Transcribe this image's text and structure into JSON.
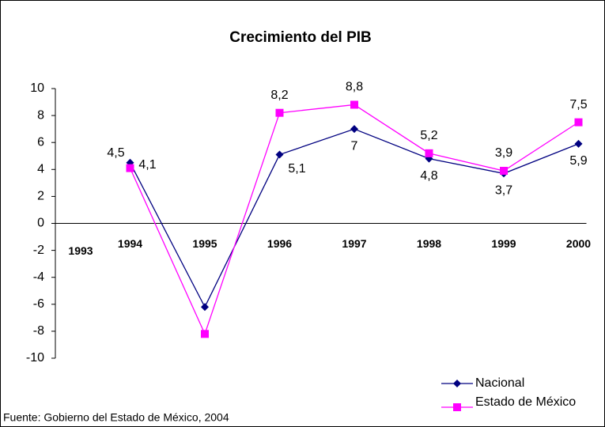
{
  "chart_data": {
    "type": "line",
    "title": "Crecimiento del PIB",
    "categories": [
      "1993",
      "1994",
      "1995",
      "1996",
      "1997",
      "1998",
      "1999",
      "2000"
    ],
    "series": [
      {
        "name": "Nacional",
        "color": "#000080",
        "marker": "diamond",
        "values": [
          null,
          4.5,
          -6.2,
          5.1,
          7,
          4.8,
          3.7,
          5.9
        ],
        "value_labels": [
          null,
          "4,5",
          null,
          "5,1",
          "7",
          "4,8",
          "3,7",
          "5,9"
        ]
      },
      {
        "name": "Estado de México",
        "color": "#ff00ff",
        "marker": "square",
        "values": [
          null,
          4.1,
          -8.2,
          8.2,
          8.8,
          5.2,
          3.9,
          7.5
        ],
        "value_labels": [
          null,
          "4,1",
          null,
          "8,2",
          "8,8",
          "5,2",
          "3,9",
          "7,5"
        ]
      }
    ],
    "ylim": [
      -10,
      10
    ],
    "yticks": [
      -10,
      -8,
      -6,
      -4,
      -2,
      0,
      2,
      4,
      6,
      8,
      10
    ],
    "grid": false,
    "legend": "bottom-right",
    "source": "Fuente: Gobierno del Estado de México, 2004"
  }
}
